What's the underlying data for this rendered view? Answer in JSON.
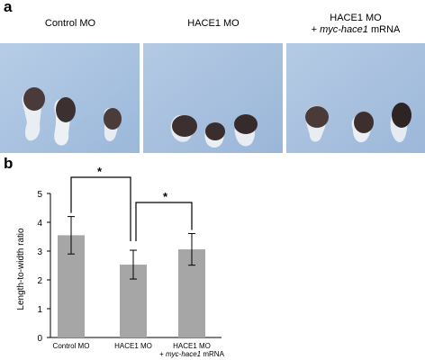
{
  "panel_a": {
    "letter": "a",
    "images": [
      {
        "label_line1": "Control MO",
        "label_line2_prefix": "",
        "label_line2_italic": "",
        "label_line2_suffix": ""
      },
      {
        "label_line1": "HACE1 MO",
        "label_line2_prefix": "",
        "label_line2_italic": "",
        "label_line2_suffix": ""
      },
      {
        "label_line1": "HACE1 MO",
        "label_line2_prefix": "+ ",
        "label_line2_italic": "myc-hace1",
        "label_line2_suffix": " mRNA"
      }
    ],
    "photo_background": "#a9c4e2"
  },
  "panel_b": {
    "letter": "b",
    "significance_marker": "*"
  },
  "chart_data": {
    "type": "bar",
    "categories": [
      "Control MO",
      "HACE1 MO",
      "HACE1 MO + myc-hace1 mRNA"
    ],
    "category_labels": [
      {
        "line1": "Control MO",
        "line2_prefix": "",
        "line2_italic": "",
        "line2_suffix": ""
      },
      {
        "line1": "HACE1 MO",
        "line2_prefix": "",
        "line2_italic": "",
        "line2_suffix": ""
      },
      {
        "line1": "HACE1 MO",
        "line2_prefix": "+ ",
        "line2_italic": "myc-hace1",
        "line2_suffix": " mRNA"
      }
    ],
    "values": [
      3.55,
      2.53,
      3.06
    ],
    "errors": [
      0.65,
      0.5,
      0.55
    ],
    "ylabel": "Length-to-width ratio",
    "xlabel": "",
    "ylim": [
      0,
      5
    ],
    "yticks": [
      0,
      1,
      2,
      3,
      4,
      5
    ],
    "grid": false,
    "bar_color": "#a6a6a6",
    "significance": [
      {
        "from": 0,
        "to": 1,
        "label": "*"
      },
      {
        "from": 1,
        "to": 2,
        "label": "*"
      }
    ]
  }
}
